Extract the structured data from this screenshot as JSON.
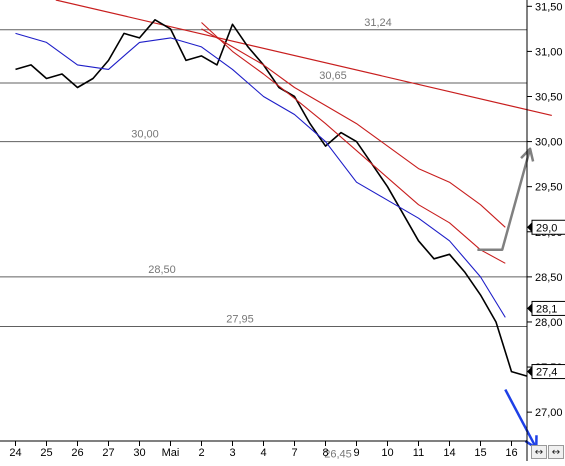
{
  "chart_data": {
    "type": "line",
    "title": "",
    "xlabel": "",
    "ylabel": "",
    "grid": false,
    "ylim": [
      26.68,
      31.57
    ],
    "x_labels": [
      "24",
      "25",
      "26",
      "27",
      "30",
      "Mai",
      "2",
      "3",
      "4",
      "7",
      "8",
      "9",
      "10",
      "11",
      "14",
      "15",
      "16"
    ],
    "y_ticks": [
      "31,50",
      "31,00",
      "30,50",
      "30,00",
      "29,50",
      "29,00",
      "28,50",
      "28,00",
      "27,50",
      "27,00"
    ],
    "y_tick_values": [
      31.5,
      31.0,
      30.5,
      30.0,
      29.5,
      29.0,
      28.5,
      28.0,
      27.5,
      27.0
    ],
    "price_badges": [
      {
        "label": "29,0",
        "value": 29.05
      },
      {
        "label": "28,1",
        "value": 28.15
      },
      {
        "label": "27,4",
        "value": 27.45
      }
    ],
    "horizontal_levels": [
      {
        "label": "31,24",
        "value": 31.24
      },
      {
        "label": "30,65",
        "value": 30.65
      },
      {
        "label": "30,00",
        "value": 30.0
      },
      {
        "label": "28,50",
        "value": 28.5
      },
      {
        "label": "27,95",
        "value": 27.95
      },
      {
        "label": "26,45",
        "value": 26.45
      }
    ],
    "series": [
      {
        "color": "#000000",
        "x": [
          0,
          0.5,
          1,
          1.5,
          2,
          2.5,
          3,
          3.5,
          4,
          4.5,
          5,
          5.5,
          6,
          6.5,
          7,
          7.5,
          8,
          8.5,
          9,
          9.5,
          10,
          10.5,
          11,
          11.5,
          12,
          12.5,
          13,
          13.5,
          14,
          14.5,
          15,
          15.5,
          16,
          16.5
        ],
        "values": [
          30.8,
          30.85,
          30.7,
          30.75,
          30.6,
          30.7,
          30.9,
          31.2,
          31.15,
          31.35,
          31.25,
          30.9,
          30.95,
          30.85,
          31.3,
          31.05,
          30.85,
          30.6,
          30.5,
          30.2,
          29.95,
          30.1,
          30.0,
          29.75,
          29.5,
          29.2,
          28.9,
          28.7,
          28.75,
          28.55,
          28.3,
          28.0,
          27.45,
          27.4
        ]
      },
      {
        "color": "#1e1ec8",
        "x": [
          0,
          1,
          2,
          3,
          4,
          5,
          6,
          7,
          8,
          9,
          10,
          11,
          12,
          13,
          14,
          15,
          15.8
        ],
        "values": [
          31.2,
          31.1,
          30.85,
          30.8,
          31.1,
          31.15,
          31.05,
          30.8,
          30.5,
          30.3,
          30.0,
          29.55,
          29.35,
          29.15,
          28.9,
          28.5,
          28.05
        ]
      },
      {
        "color": "#c81e1e",
        "x": [
          6,
          7,
          8,
          9,
          10,
          11,
          12,
          13,
          14,
          15,
          15.8
        ],
        "values": [
          31.32,
          31.0,
          30.75,
          30.48,
          30.2,
          29.9,
          29.6,
          29.3,
          29.1,
          28.8,
          28.65
        ]
      },
      {
        "color": "#c81e1e",
        "x": [
          6,
          7,
          8,
          9,
          10,
          11,
          12,
          13,
          14,
          15,
          15.8
        ],
        "values": [
          31.25,
          31.05,
          30.85,
          30.6,
          30.4,
          30.2,
          29.95,
          29.7,
          29.55,
          29.3,
          29.05
        ]
      }
    ],
    "trend_lines": [
      {
        "color": "#c81e1e",
        "from": {
          "x": 1.3,
          "y": 31.57
        },
        "to": {
          "x": 17.3,
          "y": 30.29
        }
      }
    ],
    "annotation_arrows": [
      {
        "color": "#808080",
        "points": [
          {
            "x": 14.9,
            "y": 28.8
          },
          {
            "x": 15.7,
            "y": 28.8
          },
          {
            "x": 16.6,
            "y": 29.92
          }
        ]
      },
      {
        "color": "#1e40e6",
        "points": [
          {
            "x": 15.8,
            "y": 27.25
          },
          {
            "x": 16.8,
            "y": 26.6
          }
        ]
      }
    ]
  },
  "nav": {
    "left_icon": "double-arrow-icon",
    "right_icon": "double-arrow-icon",
    "left_symbol": "↔",
    "right_symbol": "↔"
  }
}
